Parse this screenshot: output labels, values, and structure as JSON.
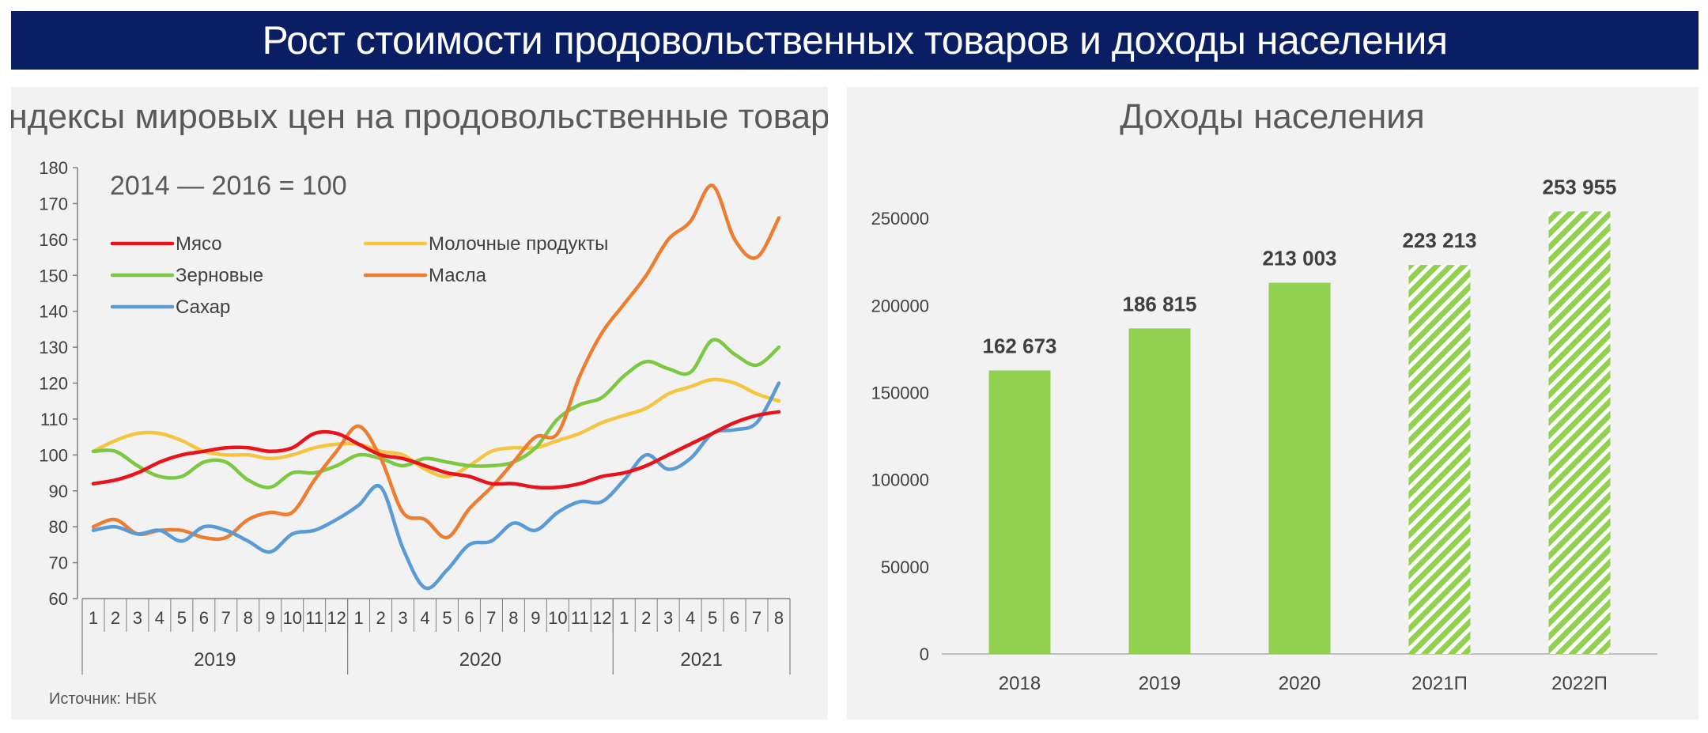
{
  "header": {
    "title": "Рост стоимости продовольственных товаров и доходы населения"
  },
  "source": "Источник: НБК",
  "chart_data": [
    {
      "type": "line",
      "title": "Индексы мировых цен на продовольственные товары",
      "annotation": "2014 — 2016 = 100",
      "ylim": [
        60,
        180
      ],
      "yticks": [
        60,
        70,
        80,
        90,
        100,
        110,
        120,
        130,
        140,
        150,
        160,
        170,
        180
      ],
      "months": [
        "1",
        "2",
        "3",
        "4",
        "5",
        "6",
        "7",
        "8",
        "9",
        "10",
        "11",
        "12",
        "1",
        "2",
        "3",
        "4",
        "5",
        "6",
        "7",
        "8",
        "9",
        "10",
        "11",
        "12",
        "1",
        "2",
        "3",
        "4",
        "5",
        "6",
        "7",
        "8"
      ],
      "years": [
        {
          "label": "2019",
          "count": 12
        },
        {
          "label": "2020",
          "count": 12
        },
        {
          "label": "2021",
          "count": 8
        }
      ],
      "legend_position": "top-left",
      "series": [
        {
          "name": "Мясо",
          "color": "#e8131b",
          "values": [
            92,
            93,
            95,
            98,
            100,
            101,
            102,
            102,
            101,
            102,
            106,
            106,
            103,
            100,
            99,
            97,
            95,
            94,
            92,
            92,
            91,
            91,
            92,
            94,
            95,
            97,
            100,
            103,
            106,
            109,
            111,
            112
          ]
        },
        {
          "name": "Молочные продукты",
          "color": "#f5c542",
          "values": [
            101,
            104,
            106,
            106,
            104,
            101,
            100,
            100,
            99,
            100,
            102,
            103,
            103,
            101,
            100,
            96,
            94,
            97,
            101,
            102,
            102,
            104,
            106,
            109,
            111,
            113,
            117,
            119,
            121,
            120,
            117,
            115
          ]
        },
        {
          "name": "Зерновые",
          "color": "#7cc842",
          "values": [
            101,
            101,
            97,
            94,
            94,
            98,
            98,
            93,
            91,
            95,
            95,
            97,
            100,
            99,
            97,
            99,
            98,
            97,
            97,
            98,
            102,
            110,
            114,
            116,
            122,
            126,
            124,
            123,
            132,
            128,
            125,
            130
          ]
        },
        {
          "name": "Масла",
          "color": "#ed7d31",
          "values": [
            80,
            82,
            78,
            79,
            79,
            77,
            77,
            82,
            84,
            84,
            93,
            101,
            108,
            99,
            84,
            82,
            77,
            85,
            91,
            98,
            105,
            106,
            122,
            134,
            142,
            150,
            160,
            165,
            175,
            160,
            155,
            166
          ]
        },
        {
          "name": "Сахар",
          "color": "#5b9bd5",
          "values": [
            79,
            80,
            78,
            79,
            76,
            80,
            79,
            76,
            73,
            78,
            79,
            82,
            86,
            91,
            74,
            63,
            68,
            75,
            76,
            81,
            79,
            84,
            87,
            87,
            93,
            100,
            96,
            99,
            106,
            107,
            109,
            120
          ]
        }
      ]
    },
    {
      "type": "bar",
      "title": "Доходы населения",
      "ylim": [
        0,
        280000
      ],
      "yticks": [
        0,
        50000,
        100000,
        150000,
        200000,
        250000
      ],
      "categories": [
        "2018",
        "2019",
        "2020",
        "2021П",
        "2022П"
      ],
      "values": [
        162673,
        186815,
        213003,
        223213,
        253955
      ],
      "value_labels": [
        "162 673",
        "186 815",
        "213 003",
        "223 213",
        "253 955"
      ],
      "forecast": [
        false,
        false,
        false,
        true,
        true
      ],
      "color": "#92d050"
    }
  ]
}
